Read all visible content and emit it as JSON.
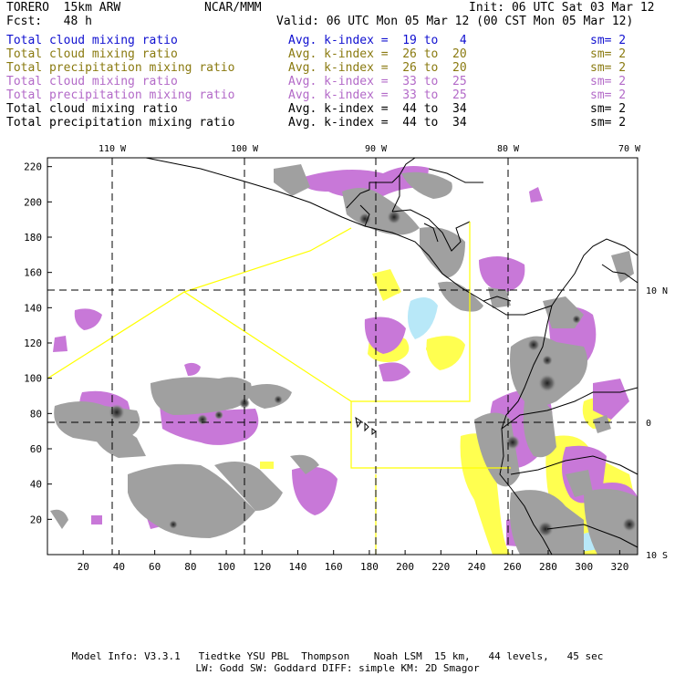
{
  "header": {
    "model_name": "TORERO  15km ARW",
    "forecast": "Fcst:   48 h",
    "center": "NCAR/MMM",
    "init": "Init: 06 UTC Sat 03 Mar 12",
    "valid": "Valid: 06 UTC Mon 05 Mar 12 (00 CST Mon 05 Mar 12)"
  },
  "legend": [
    {
      "field": "Total cloud mixing ratio",
      "index": "Avg. k-index =  19 to   4",
      "sm": "sm= 2",
      "color": "#1010d0"
    },
    {
      "field": "Total cloud mixing ratio",
      "index": "Avg. k-index =  26 to  20",
      "sm": "sm= 2",
      "color": "#8a7a10"
    },
    {
      "field": "Total precipitation mixing ratio",
      "index": "Avg. k-index =  26 to  20",
      "sm": "sm= 2",
      "color": "#8a7a10"
    },
    {
      "field": "Total cloud mixing ratio",
      "index": "Avg. k-index =  33 to  25",
      "sm": "sm= 2",
      "color": "#b36ac8"
    },
    {
      "field": "Total precipitation mixing ratio",
      "index": "Avg. k-index =  33 to  25",
      "sm": "sm= 2",
      "color": "#b36ac8"
    },
    {
      "field": "Total cloud mixing ratio",
      "index": "Avg. k-index =  44 to  34",
      "sm": "sm= 2",
      "color": "#000000"
    },
    {
      "field": "Total precipitation mixing ratio",
      "index": "Avg. k-index =  44 to  34",
      "sm": "sm= 2",
      "color": "#000000"
    }
  ],
  "map": {
    "lon_labels": [
      "110 W",
      "100 W",
      "90 W",
      "80 W",
      "70 W"
    ],
    "lat_labels": [
      "10 N",
      "0",
      "10 S"
    ],
    "x_ticks": [
      "20",
      "40",
      "60",
      "80",
      "100",
      "120",
      "140",
      "160",
      "180",
      "200",
      "220",
      "240",
      "260",
      "280",
      "300",
      "320"
    ],
    "y_ticks": [
      "20",
      "40",
      "60",
      "80",
      "100",
      "120",
      "140",
      "160",
      "180",
      "200",
      "220"
    ],
    "x_range": [
      0,
      330
    ],
    "y_range": [
      0,
      225
    ]
  },
  "colors": {
    "heavy_cloud": "#a0a0a0",
    "moderate_cloud": "#c878d8",
    "light_cloud": "#ffff50",
    "trace_cloud": "#b8e8f8",
    "coastline": "#000000",
    "domain_outline": "#ffff00",
    "gridline": "#000000"
  },
  "footer": {
    "line1": "Model Info: V3.3.1   Tiedtke YSU PBL  Thompson    Noah LSM  15 km,   44 levels,   45 sec",
    "line2": "LW: Godd SW: Goddard DIFF: simple KM: 2D Smagor"
  }
}
